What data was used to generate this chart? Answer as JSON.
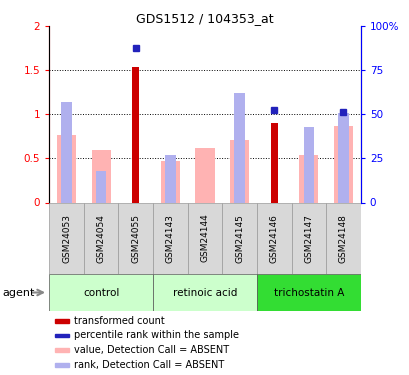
{
  "title": "GDS1512 / 104353_at",
  "samples": [
    "GSM24053",
    "GSM24054",
    "GSM24055",
    "GSM24143",
    "GSM24144",
    "GSM24145",
    "GSM24146",
    "GSM24147",
    "GSM24148"
  ],
  "groups": [
    {
      "label": "control",
      "indices": [
        0,
        1,
        2
      ],
      "color": "#ccffcc"
    },
    {
      "label": "retinoic acid",
      "indices": [
        3,
        4,
        5
      ],
      "color": "#ccffcc"
    },
    {
      "label": "trichostatin A",
      "indices": [
        6,
        7,
        8
      ],
      "color": "#33dd33"
    }
  ],
  "red_bars": [
    null,
    null,
    1.54,
    null,
    null,
    null,
    0.9,
    null,
    null
  ],
  "blue_squares": [
    null,
    null,
    1.75,
    null,
    null,
    null,
    1.05,
    null,
    1.03
  ],
  "pink_bars": [
    0.77,
    0.6,
    null,
    0.47,
    0.62,
    0.71,
    null,
    0.54,
    0.87
  ],
  "blue_bars_pct": [
    57,
    18,
    null,
    27,
    null,
    62,
    null,
    43,
    51
  ],
  "ylim_left": [
    0,
    2.0
  ],
  "ylim_right": [
    0,
    100
  ],
  "yticks_left": [
    0,
    0.5,
    1.0,
    1.5,
    2.0
  ],
  "yticks_right": [
    0,
    25,
    50,
    75,
    100
  ],
  "ytick_labels_left": [
    "0",
    "0.5",
    "1",
    "1.5",
    "2"
  ],
  "ytick_labels_right": [
    "0",
    "25",
    "50",
    "75",
    "100%"
  ],
  "hlines": [
    0.5,
    1.0,
    1.5
  ],
  "red_color": "#cc0000",
  "blue_color": "#2222bb",
  "pink_color": "#ffb3b3",
  "lightblue_color": "#b0b0ee",
  "pink_bar_width": 0.55,
  "blue_bar_width": 0.3,
  "red_bar_width": 0.2
}
